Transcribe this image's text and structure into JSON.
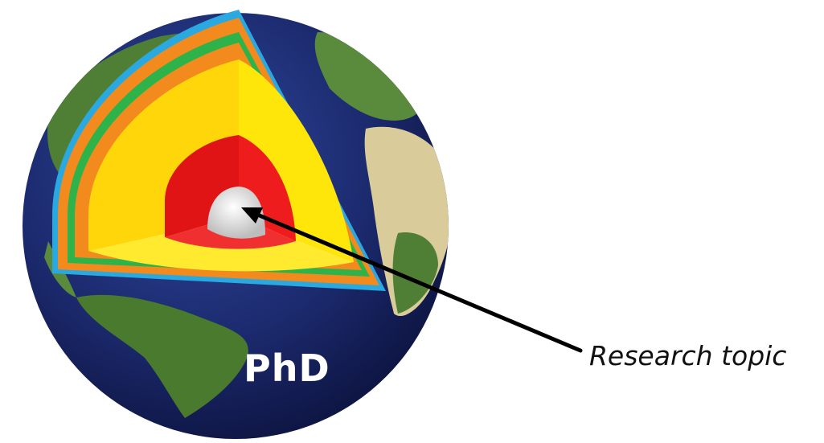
{
  "diagram": {
    "globe_label": "PhD",
    "callout_label": "Research topic"
  },
  "colors": {
    "ocean": "#1c2a6e",
    "land": "#4a7a2e",
    "desert": "#d9cc9a",
    "crust_rim": "#2aa8e0",
    "layer_orange": "#f28a1e",
    "layer_green": "#2db34a",
    "mantle_yellow": "#ffe60a",
    "outer_core_red": "#ee1c1c",
    "inner_core_white": "#eeeeee",
    "arrow": "#000000"
  }
}
